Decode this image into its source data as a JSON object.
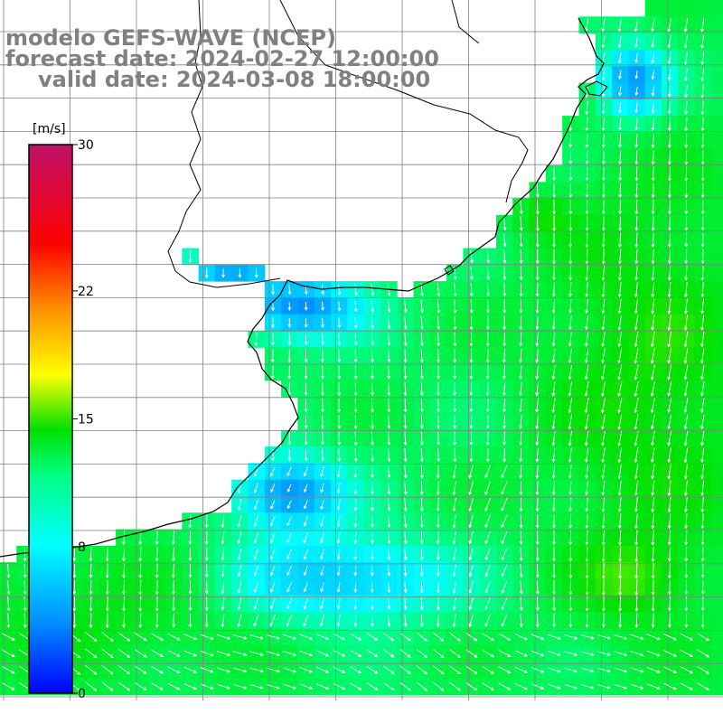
{
  "title": {
    "line1": "modelo GEFS-WAVE (NCEP)",
    "line2": "forecast date: 2024-02-27 12:00:00",
    "line3": "valid date: 2024-03-08 18:00:00"
  },
  "colorbar": {
    "unit": "[m/s]",
    "ticks": [
      "30",
      "22",
      "15",
      "8",
      "0"
    ],
    "tick_values": [
      30,
      22,
      15,
      8,
      0
    ],
    "min": 0,
    "max": 30
  },
  "colors": {
    "high": "#c0106a",
    "red": "#ff0000",
    "yellow": "#ffff00",
    "green": "#00e000",
    "cyan": "#00ffff",
    "blue": "#0000ff",
    "coastline": "#000000",
    "grid": "#808080"
  },
  "map": {
    "field": "wind speed",
    "grid": true,
    "vectors": "white arrows, mostly pointing south"
  }
}
